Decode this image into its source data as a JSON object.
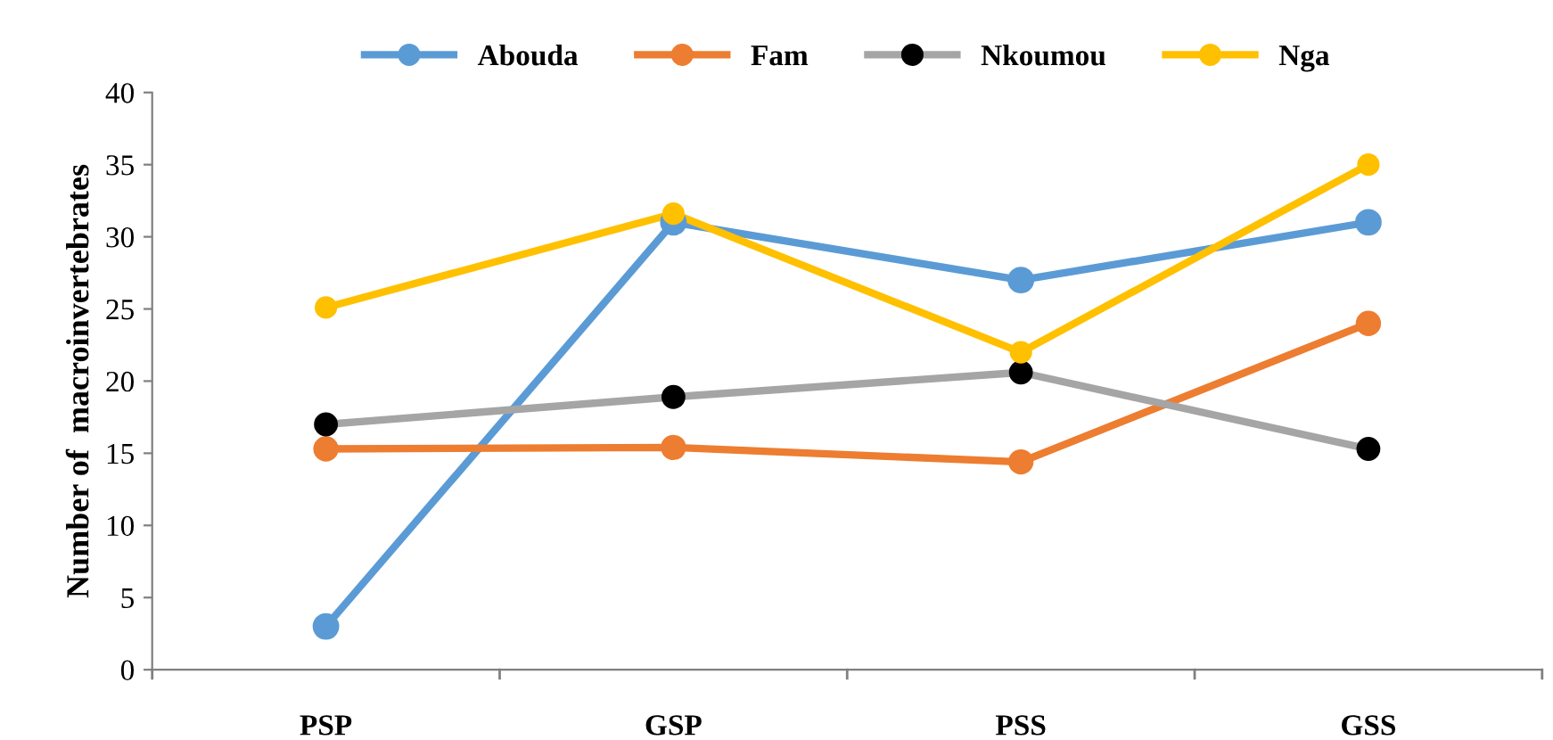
{
  "chart_data": {
    "type": "line",
    "ylabel": "Number of  macroinvertebrates",
    "categories": [
      "PSP",
      "GSP",
      "PSS",
      "GSS"
    ],
    "series": [
      {
        "name": "Abouda",
        "color": "#5b9bd5",
        "values": [
          3,
          31,
          27,
          31
        ]
      },
      {
        "name": "Fam",
        "color": "#ed7d31",
        "values": [
          15.3,
          15.4,
          14.4,
          24
        ]
      },
      {
        "name": "Nkoumou",
        "color": "#a5a5a5",
        "colors": [
          "#000000",
          "#000000",
          "#000000",
          "#000000"
        ],
        "values": [
          17,
          18.9,
          20.6,
          15.3
        ]
      },
      {
        "name": "Nga",
        "color": "#ffc000",
        "values": [
          25.1,
          31.6,
          22,
          35
        ]
      }
    ],
    "ylim": [
      0,
      40
    ],
    "yticks": [
      0,
      5,
      10,
      15,
      20,
      25,
      30,
      35,
      40
    ],
    "grid": false,
    "legend": "top",
    "marker": "circle",
    "line_style": "solid"
  }
}
